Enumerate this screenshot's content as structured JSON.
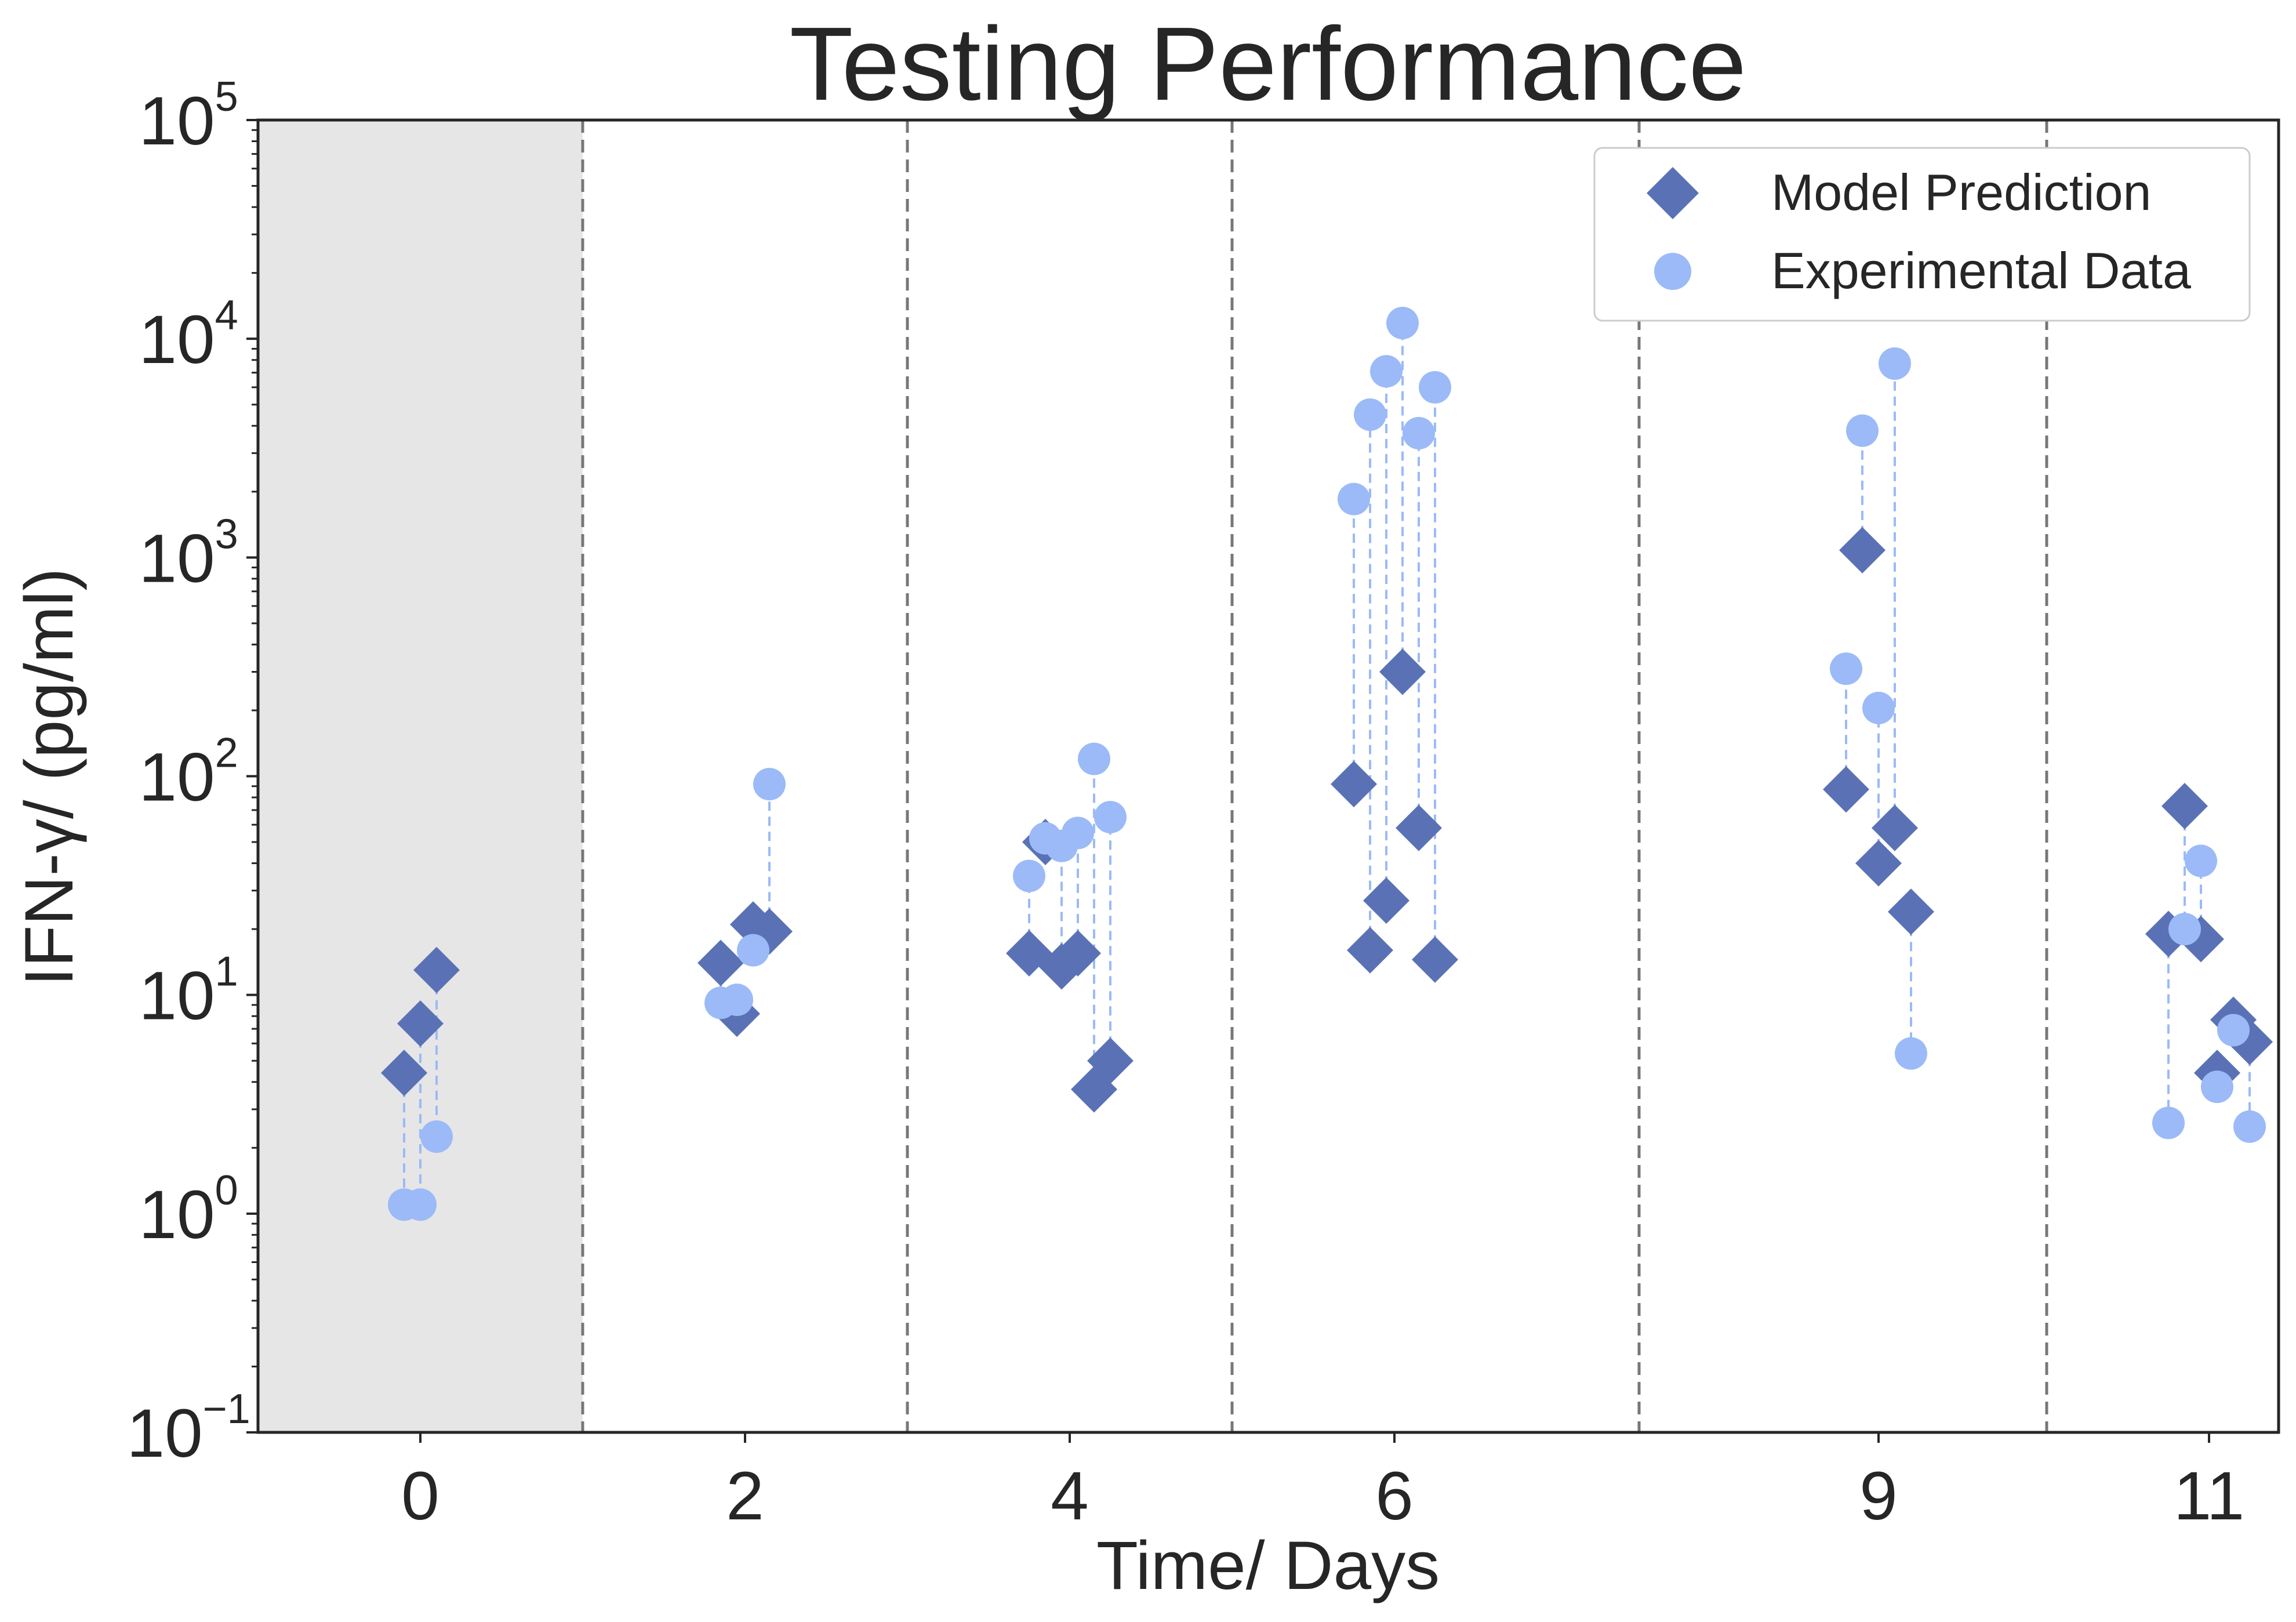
{
  "chart_data": {
    "type": "scatter",
    "title": "Testing Performance",
    "xlabel": "Time/ Days",
    "ylabel": "IFN-γ/ (pg/ml)",
    "yscale": "log",
    "ylim": [
      0.1,
      100000
    ],
    "y_ticks": [
      {
        "base": "10",
        "exp": "−1",
        "value": 0.1
      },
      {
        "base": "10",
        "exp": "0",
        "value": 1
      },
      {
        "base": "10",
        "exp": "1",
        "value": 10
      },
      {
        "base": "10",
        "exp": "2",
        "value": 100
      },
      {
        "base": "10",
        "exp": "3",
        "value": 1000
      },
      {
        "base": "10",
        "exp": "4",
        "value": 10000
      },
      {
        "base": "10",
        "exp": "5",
        "value": 100000
      }
    ],
    "x_ticks": [
      "0",
      "2",
      "4",
      "6",
      "9",
      "11"
    ],
    "shaded_region": "day 0 (training)",
    "dashed_separators": true,
    "grid": false,
    "legend_position": "top-right",
    "colors": {
      "model": "#5a72b5",
      "experimental": "#9bbaf7",
      "shade": "#e6e6e6",
      "separator": "#777777",
      "connector": "#9bbaf7"
    },
    "series": [
      {
        "name": "Model Prediction",
        "marker": "diamond"
      },
      {
        "name": "Experimental Data",
        "marker": "circle"
      }
    ],
    "groups": [
      {
        "day": "0",
        "points": [
          {
            "model": 4.4,
            "exp": 1.1
          },
          {
            "model": 7.4,
            "exp": 1.1
          },
          {
            "model": 13.0,
            "exp": 2.25
          }
        ]
      },
      {
        "day": "2",
        "points": [
          {
            "model": 14.0,
            "exp": 9.2
          },
          {
            "model": 8.2,
            "exp": 9.5
          },
          {
            "model": 21.0,
            "exp": 16.0
          },
          {
            "model": 19.5,
            "exp": 92.0
          }
        ]
      },
      {
        "day": "4",
        "points": [
          {
            "model": 15.5,
            "exp": 35.0
          },
          {
            "model": 50.0,
            "exp": 52.0
          },
          {
            "model": 13.5,
            "exp": 48.0
          },
          {
            "model": 15.5,
            "exp": 55.0
          },
          {
            "model": 3.7,
            "exp": 120.0
          },
          {
            "model": 5.0,
            "exp": 65.0
          }
        ]
      },
      {
        "day": "6",
        "points": [
          {
            "model": 92.0,
            "exp": 1850.0
          },
          {
            "model": 16.0,
            "exp": 4500.0
          },
          {
            "model": 27.0,
            "exp": 7100.0
          },
          {
            "model": 300.0,
            "exp": 11800.0
          },
          {
            "model": 58.0,
            "exp": 3700.0
          },
          {
            "model": 14.5,
            "exp": 6000.0
          }
        ]
      },
      {
        "day": "9",
        "points": [
          {
            "model": 87.0,
            "exp": 310.0
          },
          {
            "model": 1080.0,
            "exp": 3800.0
          },
          {
            "model": 40.0,
            "exp": 205.0
          },
          {
            "model": 58.0,
            "exp": 7700.0
          },
          {
            "model": 24.0,
            "exp": 5.4
          }
        ]
      },
      {
        "day": "11",
        "points": [
          {
            "model": 19.0,
            "exp": 2.6
          },
          {
            "model": 73.0,
            "exp": 20.0
          },
          {
            "model": 18.0,
            "exp": 41.0
          },
          {
            "model": 4.4,
            "exp": 3.8
          },
          {
            "model": 7.7,
            "exp": 6.9
          },
          {
            "model": 6.1,
            "exp": 2.5
          }
        ]
      }
    ]
  }
}
